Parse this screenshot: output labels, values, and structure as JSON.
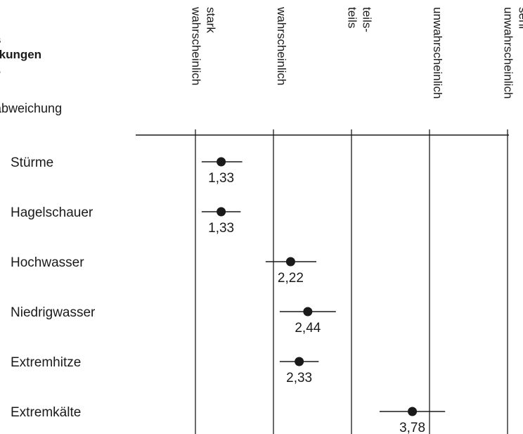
{
  "header": {
    "title_lines": [
      "s",
      "rkungen",
      ".."
    ],
    "subtitle": "abweichung"
  },
  "chart_data": {
    "type": "scatter",
    "subtype": "dot-with-error-bars",
    "orientation": "horizontal",
    "scale_columns": [
      {
        "value": 1,
        "lines": [
          "stark",
          "wahrscheinlich"
        ]
      },
      {
        "value": 2,
        "lines": [
          "wahrscheinlich"
        ]
      },
      {
        "value": 3,
        "lines": [
          "teils-",
          "teils"
        ]
      },
      {
        "value": 4,
        "lines": [
          "unwahrscheinlich"
        ]
      },
      {
        "value": 5,
        "lines": [
          "sehr",
          "unwahrscheinlich"
        ]
      }
    ],
    "xlim": [
      1,
      5
    ],
    "grid": true,
    "categories": [
      "Stürme",
      "Hagelschauer",
      "Hochwasser",
      "Niedrigwasser",
      "Extremhitze",
      "Extremkälte"
    ],
    "series": [
      {
        "values": [
          1.33,
          1.33,
          2.22,
          2.44,
          2.33,
          3.78
        ],
        "value_labels": [
          "1,33",
          "1,33",
          "2,22",
          "2,44",
          "2,33",
          "3,78"
        ],
        "err_low": [
          1.08,
          1.08,
          1.9,
          2.08,
          2.08,
          3.36
        ],
        "err_high": [
          1.6,
          1.58,
          2.55,
          2.8,
          2.58,
          4.2
        ]
      }
    ]
  }
}
